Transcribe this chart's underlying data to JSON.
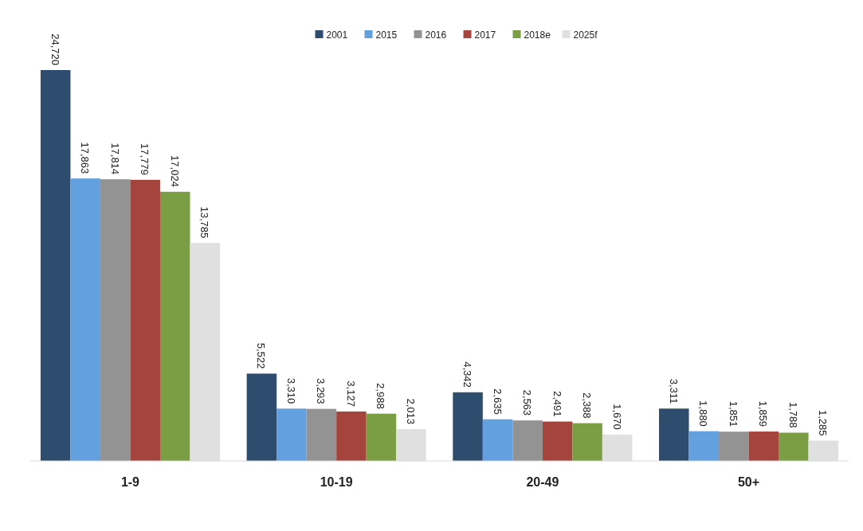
{
  "chart_data": {
    "type": "bar",
    "categories": [
      "1-9",
      "10-19",
      "20-49",
      "50+"
    ],
    "series": [
      {
        "name": "2001",
        "color": "#2e4d6e",
        "values": [
          24720,
          5522,
          4342,
          3311
        ],
        "value_labels": [
          "24,720",
          "5,522",
          "4,342",
          "3,311"
        ]
      },
      {
        "name": "2015",
        "color": "#62a0e0",
        "values": [
          17863,
          3310,
          2635,
          1880
        ],
        "value_labels": [
          "17,863",
          "3,310",
          "2,635",
          "1,880"
        ]
      },
      {
        "name": "2016",
        "color": "#939393",
        "values": [
          17814,
          3293,
          2563,
          1851
        ],
        "value_labels": [
          "17,814",
          "3,293",
          "2,563",
          "1,851"
        ]
      },
      {
        "name": "2017",
        "color": "#a5443d",
        "values": [
          17779,
          3127,
          2491,
          1859
        ],
        "value_labels": [
          "17,779",
          "3,127",
          "2,491",
          "1,859"
        ]
      },
      {
        "name": "2018e",
        "color": "#7b9e45",
        "values": [
          17024,
          2988,
          2388,
          1788
        ],
        "value_labels": [
          "17,024",
          "2,988",
          "2,388",
          "1,788"
        ]
      },
      {
        "name": "2025f",
        "color": "#e0e0e0",
        "values": [
          13785,
          2013,
          1670,
          1285
        ],
        "value_labels": [
          "13,785",
          "2,013",
          "1,670",
          "1,285"
        ]
      }
    ],
    "legend": "top"
  }
}
